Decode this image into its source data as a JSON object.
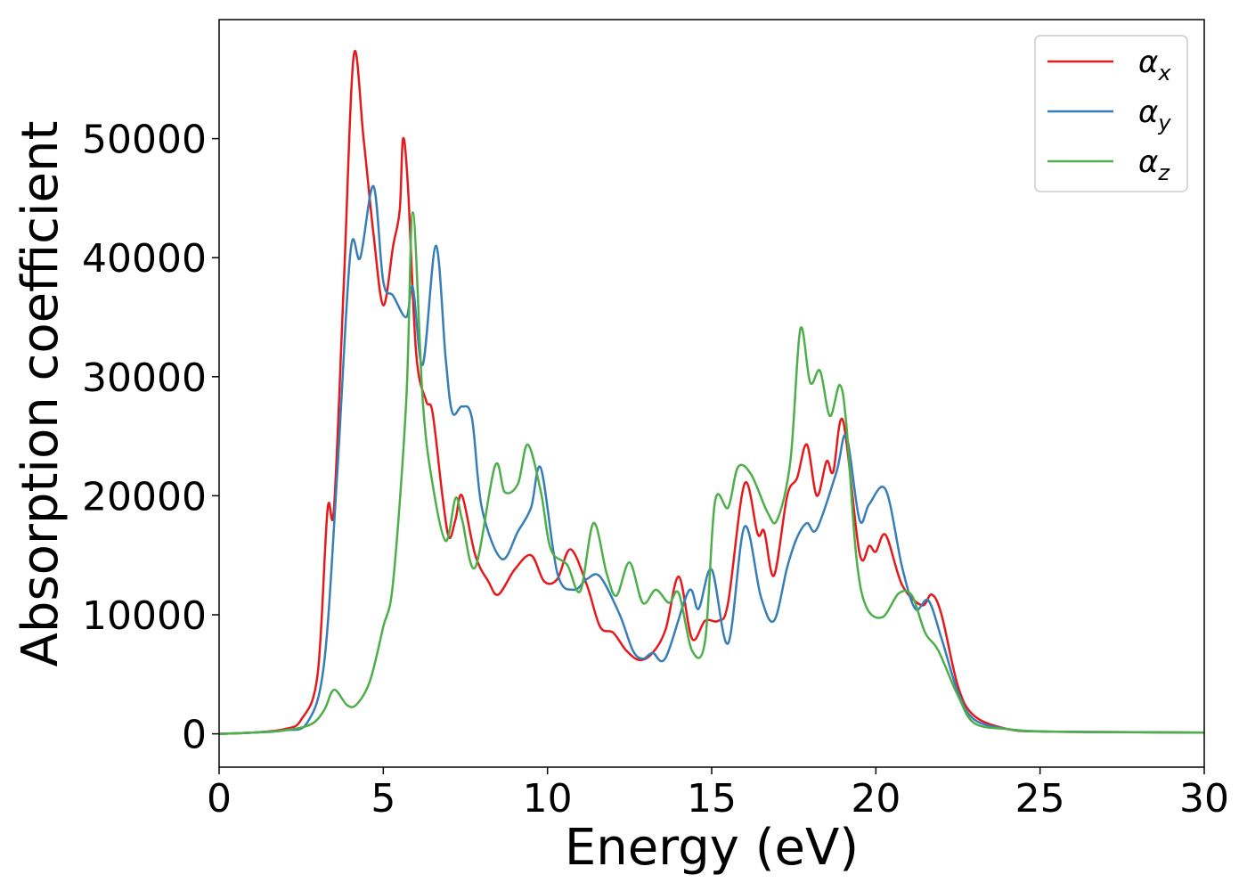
{
  "chart_data": {
    "type": "line",
    "title": "",
    "xlabel": "Energy (eV)",
    "ylabel": "Absorption coefficient",
    "xlim": [
      0,
      30
    ],
    "ylim": [
      -2800,
      60000
    ],
    "xticks": [
      0,
      5,
      10,
      15,
      20,
      25,
      30
    ],
    "xtick_labels": [
      "0",
      "5",
      "10",
      "15",
      "20",
      "25",
      "30"
    ],
    "yticks": [
      0,
      10000,
      20000,
      30000,
      40000,
      50000
    ],
    "ytick_labels": [
      "0",
      "10000",
      "20000",
      "30000",
      "40000",
      "50000"
    ],
    "grid": false,
    "legend_position": "top-right",
    "series": [
      {
        "name": "α",
        "subscript": "x",
        "color": "#e41a1c",
        "points": [
          [
            0,
            0
          ],
          [
            1,
            100
          ],
          [
            2,
            400
          ],
          [
            2.5,
            1200
          ],
          [
            3,
            5000
          ],
          [
            3.3,
            18800
          ],
          [
            3.5,
            19000
          ],
          [
            3.8,
            38000
          ],
          [
            4.1,
            57000
          ],
          [
            4.4,
            50000
          ],
          [
            4.7,
            42000
          ],
          [
            5.0,
            36000
          ],
          [
            5.3,
            41000
          ],
          [
            5.5,
            44000
          ],
          [
            5.6,
            50000
          ],
          [
            5.75,
            46000
          ],
          [
            6.0,
            32000
          ],
          [
            6.3,
            28000
          ],
          [
            6.5,
            27000
          ],
          [
            6.8,
            20000
          ],
          [
            7.0,
            16500
          ],
          [
            7.2,
            18000
          ],
          [
            7.4,
            20000
          ],
          [
            7.8,
            15000
          ],
          [
            8.2,
            12800
          ],
          [
            8.5,
            11700
          ],
          [
            9.0,
            13800
          ],
          [
            9.5,
            15000
          ],
          [
            9.9,
            12800
          ],
          [
            10.3,
            13000
          ],
          [
            10.7,
            15500
          ],
          [
            11.2,
            12500
          ],
          [
            11.6,
            9000
          ],
          [
            12.0,
            8500
          ],
          [
            12.4,
            7000
          ],
          [
            12.8,
            6200
          ],
          [
            13.2,
            6800
          ],
          [
            13.6,
            8800
          ],
          [
            14.0,
            13200
          ],
          [
            14.4,
            8000
          ],
          [
            14.8,
            9500
          ],
          [
            15.2,
            9500
          ],
          [
            15.5,
            11000
          ],
          [
            16.0,
            21000
          ],
          [
            16.4,
            16800
          ],
          [
            16.6,
            17000
          ],
          [
            16.9,
            13300
          ],
          [
            17.3,
            20000
          ],
          [
            17.6,
            21500
          ],
          [
            17.9,
            24300
          ],
          [
            18.2,
            20000
          ],
          [
            18.5,
            22900
          ],
          [
            18.7,
            22000
          ],
          [
            19.0,
            26300
          ],
          [
            19.5,
            15200
          ],
          [
            19.8,
            15800
          ],
          [
            20.0,
            15300
          ],
          [
            20.3,
            16700
          ],
          [
            20.8,
            12500
          ],
          [
            21.4,
            10800
          ],
          [
            21.7,
            11700
          ],
          [
            22.0,
            10000
          ],
          [
            22.5,
            4000
          ],
          [
            23.0,
            1500
          ],
          [
            24,
            400
          ],
          [
            25,
            200
          ],
          [
            27,
            150
          ],
          [
            30,
            100
          ]
        ]
      },
      {
        "name": "α",
        "subscript": "y",
        "color": "#377eb8",
        "points": [
          [
            0,
            0
          ],
          [
            1,
            100
          ],
          [
            2,
            300
          ],
          [
            2.7,
            1000
          ],
          [
            3.2,
            6000
          ],
          [
            3.6,
            22000
          ],
          [
            4.0,
            40500
          ],
          [
            4.3,
            40000
          ],
          [
            4.7,
            46000
          ],
          [
            5.0,
            38000
          ],
          [
            5.3,
            36800
          ],
          [
            5.7,
            35000
          ],
          [
            5.9,
            37500
          ],
          [
            6.2,
            31000
          ],
          [
            6.6,
            41000
          ],
          [
            6.9,
            31500
          ],
          [
            7.1,
            27000
          ],
          [
            7.4,
            27500
          ],
          [
            7.7,
            26500
          ],
          [
            8.0,
            19000
          ],
          [
            8.6,
            14700
          ],
          [
            9.1,
            17000
          ],
          [
            9.5,
            19000
          ],
          [
            9.8,
            22300
          ],
          [
            10.3,
            13500
          ],
          [
            10.8,
            12100
          ],
          [
            11.2,
            13000
          ],
          [
            11.6,
            13200
          ],
          [
            12.2,
            10000
          ],
          [
            12.6,
            7000
          ],
          [
            12.9,
            6300
          ],
          [
            13.2,
            6800
          ],
          [
            13.6,
            6400
          ],
          [
            14.3,
            12000
          ],
          [
            14.6,
            10500
          ],
          [
            15.0,
            13800
          ],
          [
            15.5,
            7600
          ],
          [
            16.0,
            17400
          ],
          [
            16.5,
            11500
          ],
          [
            16.9,
            9500
          ],
          [
            17.3,
            14000
          ],
          [
            17.6,
            16500
          ],
          [
            17.9,
            17700
          ],
          [
            18.2,
            17200
          ],
          [
            18.8,
            22000
          ],
          [
            19.1,
            25000
          ],
          [
            19.5,
            18000
          ],
          [
            19.8,
            19300
          ],
          [
            20.3,
            20500
          ],
          [
            20.8,
            14000
          ],
          [
            21.2,
            10500
          ],
          [
            21.6,
            11200
          ],
          [
            22.0,
            8000
          ],
          [
            22.5,
            3500
          ],
          [
            23.0,
            1200
          ],
          [
            24,
            400
          ],
          [
            25,
            200
          ],
          [
            27,
            150
          ],
          [
            30,
            100
          ]
        ]
      },
      {
        "name": "α",
        "subscript": "z",
        "color": "#4daf4a",
        "points": [
          [
            0,
            0
          ],
          [
            1,
            100
          ],
          [
            2,
            300
          ],
          [
            2.8,
            800
          ],
          [
            3.2,
            2000
          ],
          [
            3.5,
            3700
          ],
          [
            3.9,
            2400
          ],
          [
            4.2,
            2500
          ],
          [
            4.6,
            4500
          ],
          [
            5.0,
            9000
          ],
          [
            5.3,
            12800
          ],
          [
            5.7,
            28000
          ],
          [
            5.9,
            43800
          ],
          [
            6.2,
            28000
          ],
          [
            6.5,
            21000
          ],
          [
            6.9,
            16200
          ],
          [
            7.2,
            19800
          ],
          [
            7.4,
            18000
          ],
          [
            7.8,
            14000
          ],
          [
            8.4,
            22500
          ],
          [
            8.7,
            20300
          ],
          [
            9.1,
            21000
          ],
          [
            9.4,
            24300
          ],
          [
            9.8,
            20300
          ],
          [
            10.1,
            15500
          ],
          [
            10.6,
            14200
          ],
          [
            11.0,
            12000
          ],
          [
            11.4,
            17700
          ],
          [
            11.8,
            13500
          ],
          [
            12.1,
            11600
          ],
          [
            12.5,
            14400
          ],
          [
            12.9,
            11000
          ],
          [
            13.3,
            12100
          ],
          [
            13.7,
            11000
          ],
          [
            14.0,
            11800
          ],
          [
            14.4,
            7000
          ],
          [
            14.8,
            7800
          ],
          [
            15.1,
            19500
          ],
          [
            15.5,
            19000
          ],
          [
            15.8,
            22400
          ],
          [
            16.2,
            21800
          ],
          [
            16.7,
            18600
          ],
          [
            17.0,
            18000
          ],
          [
            17.4,
            23000
          ],
          [
            17.7,
            34000
          ],
          [
            18.0,
            29500
          ],
          [
            18.3,
            30500
          ],
          [
            18.6,
            26700
          ],
          [
            18.9,
            29300
          ],
          [
            19.1,
            26000
          ],
          [
            19.4,
            15000
          ],
          [
            19.7,
            10700
          ],
          [
            20.2,
            9800
          ],
          [
            20.7,
            11800
          ],
          [
            21.1,
            11600
          ],
          [
            21.5,
            8500
          ],
          [
            21.9,
            7000
          ],
          [
            22.5,
            3200
          ],
          [
            23.0,
            900
          ],
          [
            24,
            400
          ],
          [
            25,
            200
          ],
          [
            27,
            150
          ],
          [
            30,
            100
          ]
        ]
      }
    ]
  }
}
